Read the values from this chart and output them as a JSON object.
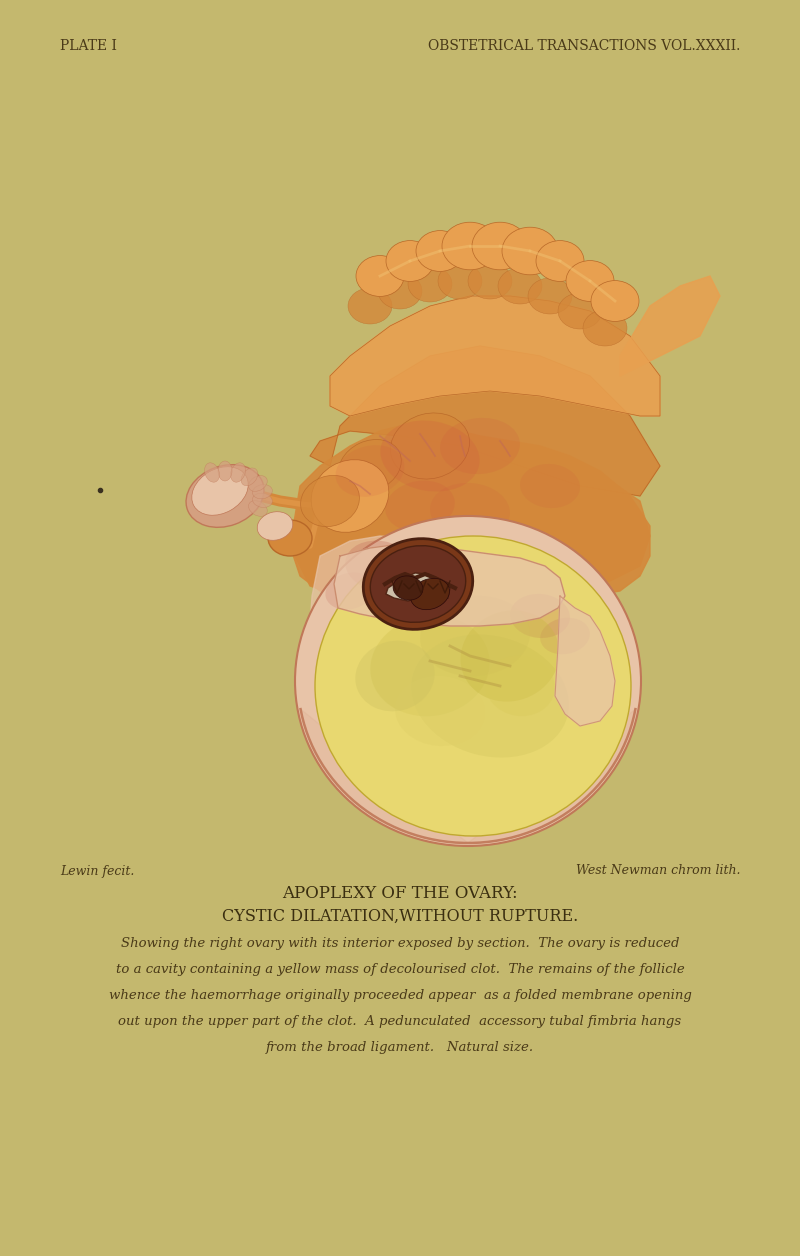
{
  "background_color": "#c4b86e",
  "header_left": "PLATE I",
  "header_right": "OBSTETRICAL TRANSACTIONS VOL.XXXII.",
  "footer_left": "Lewin fecit.",
  "footer_right": "West Newman chrom lith.",
  "title_line1": "APOPLEXY OF THE OVARY:",
  "title_line2": "CYSTIC DILATATION,WITHOUT RUPTURE.",
  "caption_lines": [
    "Showing the right ovary with its interior exposed by section.  The ovary is reduced",
    "to a cavity containing a yellow mass of decolourised clot.  The remains of the follicle",
    "whence the haemorrhage originally proceeded appear  as a folded membrane opening",
    "out upon the upper part of the clot.  A pedunculated  accessory tubal fimbria hangs",
    "from the broad ligament.   Natural size."
  ],
  "header_fontsize": 10,
  "footer_fontsize": 9,
  "title_fontsize": 12,
  "caption_fontsize": 10,
  "text_color": "#4a3a18",
  "title_color": "#3a2e10",
  "caption_color": "#4a3a18"
}
